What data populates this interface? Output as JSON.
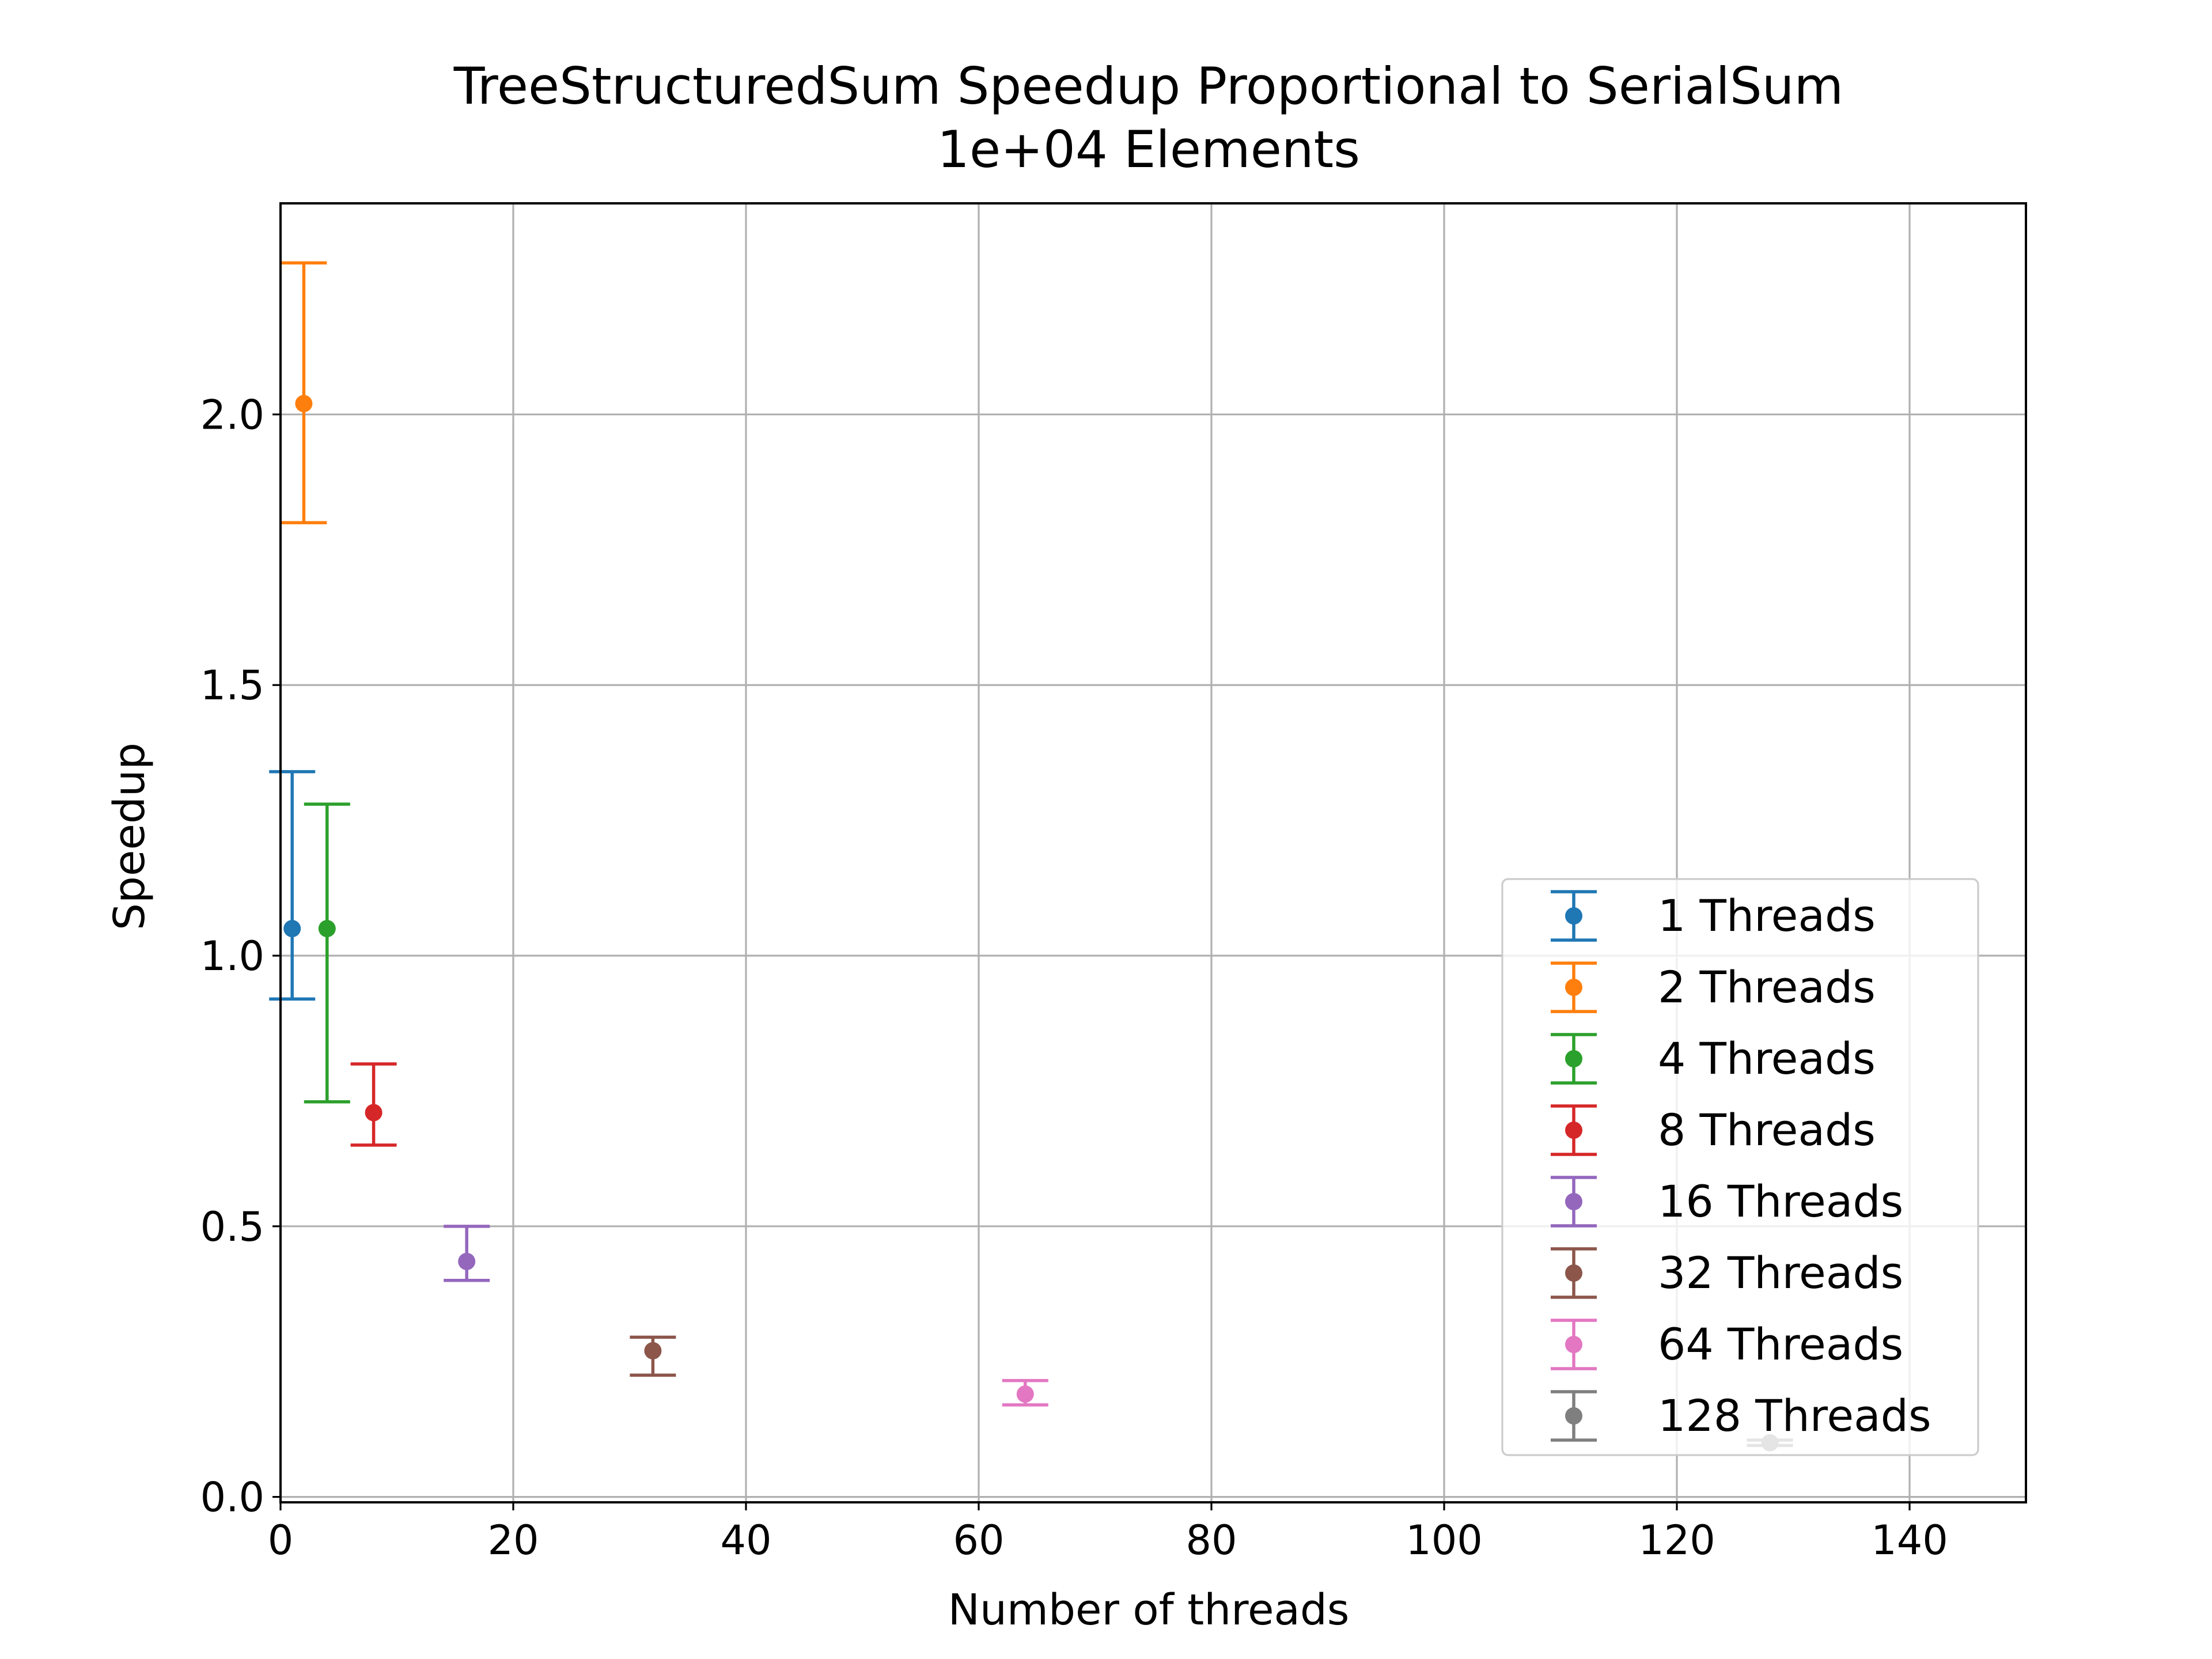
{
  "chart_data": {
    "type": "scatter",
    "title": "TreeStructuredSum Speedup Proportional to SerialSum",
    "subtitle": "1e+04 Elements",
    "xlabel": "Number of threads",
    "ylabel": "Speedup",
    "xlim": [
      0,
      150
    ],
    "ylim": [
      -0.01,
      2.39
    ],
    "xticks": [
      0,
      20,
      40,
      60,
      80,
      100,
      120,
      140
    ],
    "yticks": [
      0.0,
      0.5,
      1.0,
      1.5,
      2.0
    ],
    "xtick_labels": [
      "0",
      "20",
      "40",
      "60",
      "80",
      "100",
      "120",
      "140"
    ],
    "ytick_labels": [
      "0.0",
      "0.5",
      "1.0",
      "1.5",
      "2.0"
    ],
    "grid": true,
    "legend_position": "lower-right",
    "series": [
      {
        "name": "1 Threads",
        "x": 1,
        "y": 1.05,
        "ylow": 0.92,
        "yhigh": 1.34,
        "color": "#1f77b4"
      },
      {
        "name": "2 Threads",
        "x": 2,
        "y": 2.02,
        "ylow": 1.8,
        "yhigh": 2.28,
        "color": "#ff7f0e"
      },
      {
        "name": "4 Threads",
        "x": 4,
        "y": 1.05,
        "ylow": 0.73,
        "yhigh": 1.28,
        "color": "#2ca02c"
      },
      {
        "name": "8 Threads",
        "x": 8,
        "y": 0.71,
        "ylow": 0.65,
        "yhigh": 0.8,
        "color": "#d62728"
      },
      {
        "name": "16 Threads",
        "x": 16,
        "y": 0.435,
        "ylow": 0.4,
        "yhigh": 0.5,
        "color": "#9467bd"
      },
      {
        "name": "32 Threads",
        "x": 32,
        "y": 0.27,
        "ylow": 0.225,
        "yhigh": 0.295,
        "color": "#8c564b"
      },
      {
        "name": "64 Threads",
        "x": 64,
        "y": 0.19,
        "ylow": 0.17,
        "yhigh": 0.215,
        "color": "#e377c2"
      },
      {
        "name": "128 Threads",
        "x": 128,
        "y": 0.1,
        "ylow": 0.095,
        "yhigh": 0.105,
        "color": "#7f7f7f"
      }
    ]
  }
}
